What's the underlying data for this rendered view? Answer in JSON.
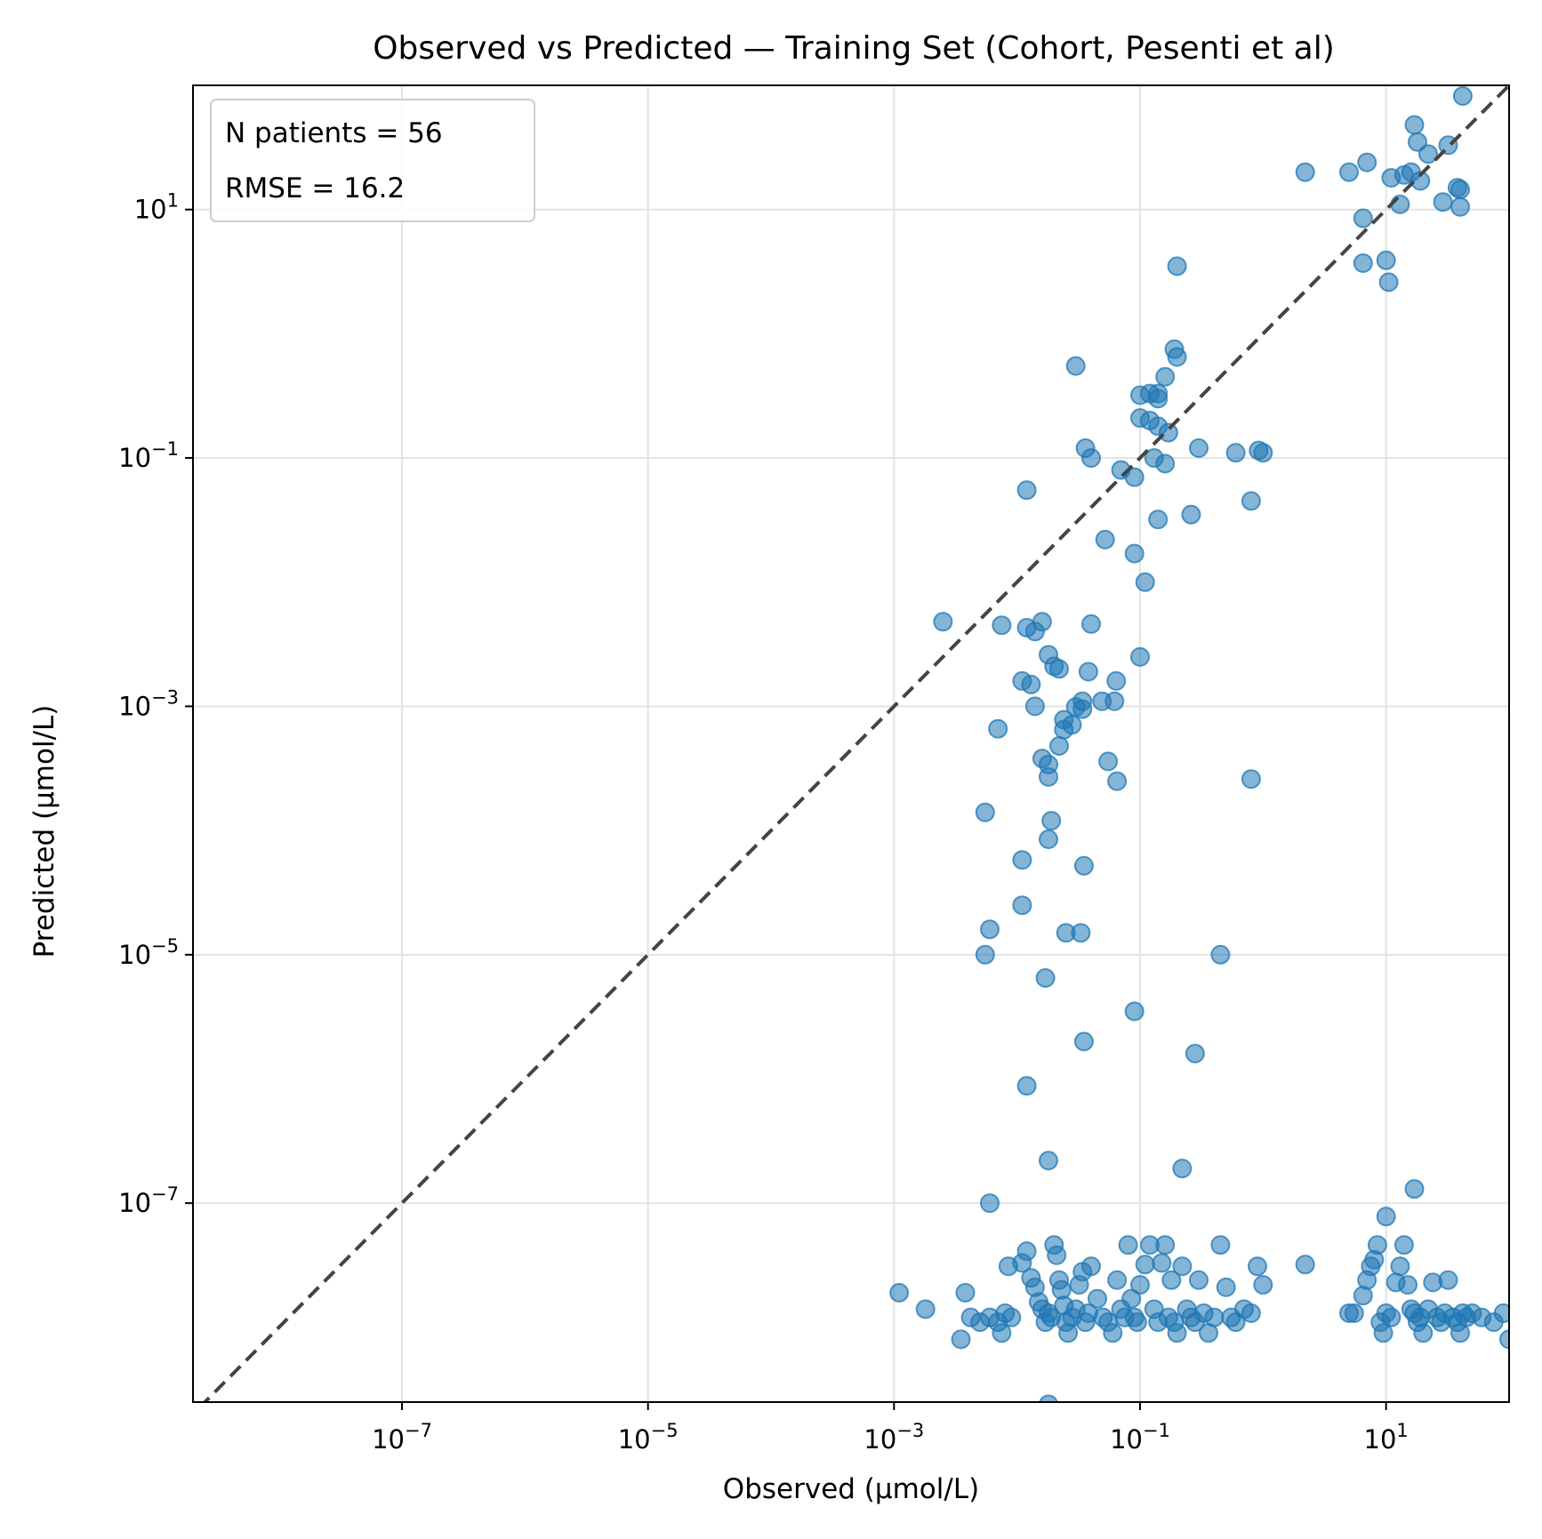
{
  "chart_data": {
    "type": "scatter",
    "title": "Observed vs Predicted — Training Set (Cohort, Pesenti et al)",
    "xlabel": "Observed (µmol/L)",
    "ylabel": "Predicted (µmol/L)",
    "xscale": "log",
    "yscale": "log",
    "xlim": [
      2e-09,
      100
    ],
    "ylim": [
      2.5e-09,
      100
    ],
    "xticks": [
      {
        "base": "10",
        "exp": "−7",
        "value": 1e-07
      },
      {
        "base": "10",
        "exp": "−5",
        "value": 1e-05
      },
      {
        "base": "10",
        "exp": "−3",
        "value": 0.001
      },
      {
        "base": "10",
        "exp": "−1",
        "value": 0.1
      },
      {
        "base": "10",
        "exp": "1",
        "value": 10
      }
    ],
    "yticks": [
      {
        "base": "10",
        "exp": "−7",
        "value": 1e-07
      },
      {
        "base": "10",
        "exp": "−5",
        "value": 1e-05
      },
      {
        "base": "10",
        "exp": "−3",
        "value": 0.001
      },
      {
        "base": "10",
        "exp": "−1",
        "value": 0.1
      },
      {
        "base": "10",
        "exp": "1",
        "value": 10
      }
    ],
    "grid": true,
    "legend_position": "top-left",
    "annotations": [
      "N patients = 56",
      "RMSE = 16.2"
    ],
    "reference_line": "y = x (dashed)",
    "marker_color": "#1f77b4",
    "reference_line_color": "#444444",
    "points": [
      [
        42,
        82
      ],
      [
        17,
        48
      ],
      [
        18,
        35
      ],
      [
        32,
        33
      ],
      [
        22,
        28
      ],
      [
        7,
        24
      ],
      [
        16,
        20
      ],
      [
        5,
        20
      ],
      [
        2.2,
        20
      ],
      [
        14,
        19
      ],
      [
        11,
        18
      ],
      [
        19,
        17
      ],
      [
        38,
        15
      ],
      [
        40,
        14.5
      ],
      [
        13,
        11
      ],
      [
        29,
        11.5
      ],
      [
        40,
        10.5
      ],
      [
        6.5,
        8.5
      ],
      [
        10,
        3.9
      ],
      [
        6.5,
        3.7
      ],
      [
        10.5,
        2.6
      ],
      [
        0.2,
        3.5
      ],
      [
        0.19,
        0.75
      ],
      [
        0.2,
        0.65
      ],
      [
        0.03,
        0.55
      ],
      [
        0.16,
        0.45
      ],
      [
        0.12,
        0.33
      ],
      [
        0.14,
        0.33
      ],
      [
        0.1,
        0.32
      ],
      [
        0.14,
        0.3
      ],
      [
        0.1,
        0.21
      ],
      [
        0.12,
        0.2
      ],
      [
        0.14,
        0.18
      ],
      [
        0.17,
        0.16
      ],
      [
        0.3,
        0.12
      ],
      [
        0.036,
        0.12
      ],
      [
        0.04,
        0.1
      ],
      [
        0.13,
        0.1
      ],
      [
        0.16,
        0.09
      ],
      [
        0.6,
        0.11
      ],
      [
        0.92,
        0.115
      ],
      [
        1.0,
        0.11
      ],
      [
        0.07,
        0.08
      ],
      [
        0.09,
        0.07
      ],
      [
        0.012,
        0.055
      ],
      [
        0.8,
        0.045
      ],
      [
        0.26,
        0.035
      ],
      [
        0.14,
        0.032
      ],
      [
        0.052,
        0.022
      ],
      [
        0.09,
        0.017
      ],
      [
        0.11,
        0.01
      ],
      [
        0.0025,
        0.0048
      ],
      [
        0.0075,
        0.0045
      ],
      [
        0.016,
        0.0048
      ],
      [
        0.012,
        0.0043
      ],
      [
        0.014,
        0.004
      ],
      [
        0.04,
        0.0046
      ],
      [
        0.018,
        0.0026
      ],
      [
        0.02,
        0.0021
      ],
      [
        0.022,
        0.002
      ],
      [
        0.038,
        0.0019
      ],
      [
        0.1,
        0.0025
      ],
      [
        0.011,
        0.0016
      ],
      [
        0.013,
        0.0015
      ],
      [
        0.064,
        0.0016
      ],
      [
        0.049,
        0.0011
      ],
      [
        0.062,
        0.0011
      ],
      [
        0.034,
        0.0011
      ],
      [
        0.014,
        0.001
      ],
      [
        0.03,
        0.00099
      ],
      [
        0.034,
        0.00095
      ],
      [
        0.024,
        0.00078
      ],
      [
        0.028,
        0.00071
      ],
      [
        0.024,
        0.00065
      ],
      [
        0.007,
        0.00066
      ],
      [
        0.022,
        0.00048
      ],
      [
        0.016,
        0.00038
      ],
      [
        0.018,
        0.00034
      ],
      [
        0.055,
        0.00036
      ],
      [
        0.018,
        0.00027
      ],
      [
        0.065,
        0.00025
      ],
      [
        0.8,
        0.00026
      ],
      [
        0.0055,
        0.00014
      ],
      [
        0.019,
        0.00012
      ],
      [
        0.018,
        8.5e-05
      ],
      [
        0.011,
        5.8e-05
      ],
      [
        0.035,
        5.2e-05
      ],
      [
        0.011,
        2.5e-05
      ],
      [
        0.006,
        1.6e-05
      ],
      [
        0.025,
        1.5e-05
      ],
      [
        0.033,
        1.5e-05
      ],
      [
        0.0055,
        1e-05
      ],
      [
        0.45,
        1e-05
      ],
      [
        0.017,
        6.5e-06
      ],
      [
        0.09,
        3.5e-06
      ],
      [
        0.035,
        2e-06
      ],
      [
        0.28,
        1.6e-06
      ],
      [
        0.012,
        8.8e-07
      ],
      [
        0.018,
        2.2e-07
      ],
      [
        0.22,
        1.9e-07
      ],
      [
        17,
        1.3e-07
      ],
      [
        10,
        7.8e-08
      ],
      [
        0.006,
        1e-07
      ],
      [
        0.018,
        2.4e-09
      ],
      [
        0.0011,
        1.9e-08
      ],
      [
        0.0018,
        1.4e-08
      ],
      [
        0.0038,
        1.9e-08
      ],
      [
        0.0042,
        1.2e-08
      ],
      [
        0.0035,
        8e-09
      ],
      [
        0.005,
        1.1e-08
      ],
      [
        0.006,
        1.2e-08
      ],
      [
        0.007,
        1.1e-08
      ],
      [
        0.008,
        1.3e-08
      ],
      [
        0.009,
        1.2e-08
      ],
      [
        0.0075,
        9e-09
      ],
      [
        0.0085,
        3.1e-08
      ],
      [
        0.011,
        3.3e-08
      ],
      [
        0.012,
        4.1e-08
      ],
      [
        0.013,
        2.5e-08
      ],
      [
        0.014,
        2.1e-08
      ],
      [
        0.015,
        1.6e-08
      ],
      [
        0.016,
        1.4e-08
      ],
      [
        0.017,
        1.1e-08
      ],
      [
        0.018,
        1.3e-08
      ],
      [
        0.019,
        1.2e-08
      ],
      [
        0.02,
        4.6e-08
      ],
      [
        0.021,
        3.8e-08
      ],
      [
        0.022,
        2.4e-08
      ],
      [
        0.023,
        2e-08
      ],
      [
        0.024,
        1.5e-08
      ],
      [
        0.025,
        1.1e-08
      ],
      [
        0.026,
        9e-09
      ],
      [
        0.028,
        1.2e-08
      ],
      [
        0.03,
        1.4e-08
      ],
      [
        0.032,
        2.2e-08
      ],
      [
        0.034,
        2.8e-08
      ],
      [
        0.036,
        1.1e-08
      ],
      [
        0.038,
        1.3e-08
      ],
      [
        0.04,
        3.1e-08
      ],
      [
        0.045,
        1.7e-08
      ],
      [
        0.05,
        1.2e-08
      ],
      [
        0.055,
        1.1e-08
      ],
      [
        0.06,
        9e-09
      ],
      [
        0.065,
        2.4e-08
      ],
      [
        0.07,
        1.4e-08
      ],
      [
        0.075,
        1.2e-08
      ],
      [
        0.08,
        4.6e-08
      ],
      [
        0.085,
        1.7e-08
      ],
      [
        0.09,
        1.2e-08
      ],
      [
        0.095,
        1.1e-08
      ],
      [
        0.1,
        2.2e-08
      ],
      [
        0.11,
        3.2e-08
      ],
      [
        0.12,
        4.6e-08
      ],
      [
        0.13,
        1.4e-08
      ],
      [
        0.14,
        1.1e-08
      ],
      [
        0.15,
        3.3e-08
      ],
      [
        0.16,
        4.6e-08
      ],
      [
        0.17,
        1.2e-08
      ],
      [
        0.18,
        2.4e-08
      ],
      [
        0.19,
        1.1e-08
      ],
      [
        0.2,
        9e-09
      ],
      [
        0.22,
        3.1e-08
      ],
      [
        0.24,
        1.4e-08
      ],
      [
        0.26,
        1.2e-08
      ],
      [
        0.28,
        1.1e-08
      ],
      [
        0.3,
        2.4e-08
      ],
      [
        0.33,
        1.3e-08
      ],
      [
        0.36,
        9e-09
      ],
      [
        0.4,
        1.2e-08
      ],
      [
        0.45,
        4.6e-08
      ],
      [
        0.5,
        2.1e-08
      ],
      [
        0.55,
        1.2e-08
      ],
      [
        0.6,
        1.1e-08
      ],
      [
        0.7,
        1.4e-08
      ],
      [
        0.8,
        1.3e-08
      ],
      [
        0.9,
        3.1e-08
      ],
      [
        1.0,
        2.2e-08
      ],
      [
        2.2,
        3.2e-08
      ],
      [
        5,
        1.3e-08
      ],
      [
        5.5,
        1.3e-08
      ],
      [
        6.5,
        1.8e-08
      ],
      [
        7,
        2.4e-08
      ],
      [
        7.5,
        3.1e-08
      ],
      [
        8,
        3.5e-08
      ],
      [
        8.5,
        4.6e-08
      ],
      [
        9,
        1.1e-08
      ],
      [
        9.5,
        9e-09
      ],
      [
        10,
        1.3e-08
      ],
      [
        11,
        1.2e-08
      ],
      [
        12,
        2.3e-08
      ],
      [
        13,
        3.1e-08
      ],
      [
        14,
        4.6e-08
      ],
      [
        15,
        2.2e-08
      ],
      [
        16,
        1.4e-08
      ],
      [
        17,
        1.3e-08
      ],
      [
        18,
        1.1e-08
      ],
      [
        19,
        1.2e-08
      ],
      [
        20,
        9e-09
      ],
      [
        22,
        1.4e-08
      ],
      [
        24,
        2.3e-08
      ],
      [
        26,
        1.2e-08
      ],
      [
        28,
        1.1e-08
      ],
      [
        30,
        1.3e-08
      ],
      [
        32,
        2.4e-08
      ],
      [
        35,
        1.2e-08
      ],
      [
        38,
        1.1e-08
      ],
      [
        40,
        9e-09
      ],
      [
        42,
        1.3e-08
      ],
      [
        45,
        1.2e-08
      ],
      [
        50,
        1.3e-08
      ],
      [
        60,
        1.2e-08
      ],
      [
        75,
        1.1e-08
      ],
      [
        90,
        1.3e-08
      ],
      [
        100,
        8e-09
      ]
    ]
  }
}
